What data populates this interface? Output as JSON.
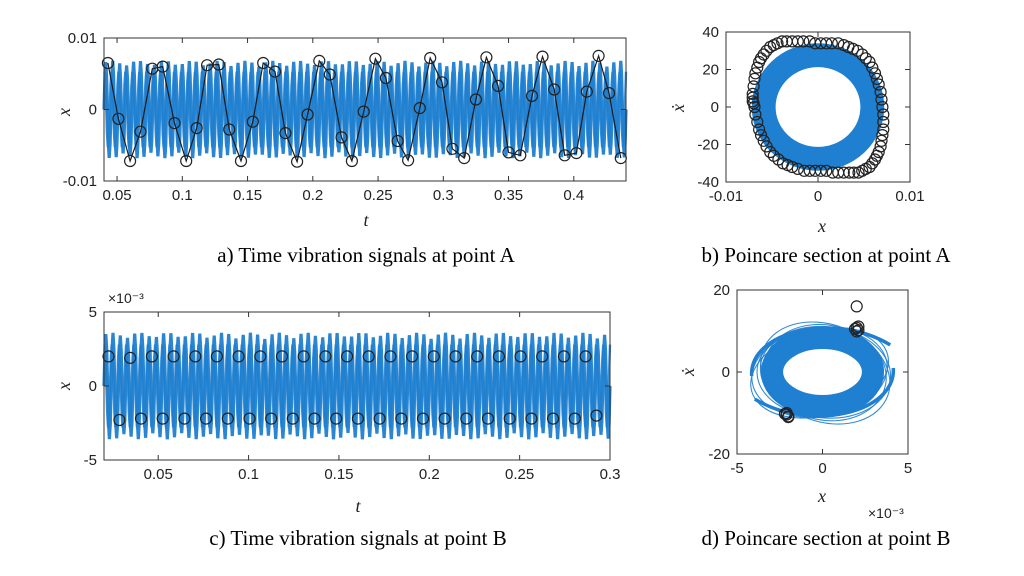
{
  "chart_data": [
    {
      "panel": "a",
      "type": "line",
      "caption": "a) Time vibration signals at point A",
      "xlabel": "t",
      "ylabel": "x",
      "xlim": [
        0.04,
        0.44
      ],
      "ylim": [
        -0.01,
        0.01
      ],
      "xticks": [
        "0.05",
        "0.1",
        "0.15",
        "0.2",
        "0.25",
        "0.3",
        "0.35",
        "0.4"
      ],
      "xtick_values": [
        0.05,
        0.1,
        0.15,
        0.2,
        0.25,
        0.3,
        0.35,
        0.4
      ],
      "yticks": [
        "0.01",
        "0",
        "-0.01"
      ],
      "ytick_values": [
        0.01,
        0,
        -0.01
      ],
      "signal": {
        "color": "#1f7fd0",
        "amplitude": 0.0068,
        "cycles": 75
      },
      "poincare_points": {
        "x": [
          0.043,
          0.051,
          0.06,
          0.068,
          0.077,
          0.085,
          0.094,
          0.103,
          0.111,
          0.119,
          0.128,
          0.136,
          0.145,
          0.154,
          0.162,
          0.171,
          0.179,
          0.188,
          0.196,
          0.205,
          0.213,
          0.222,
          0.23,
          0.239,
          0.248,
          0.256,
          0.265,
          0.273,
          0.282,
          0.29,
          0.299,
          0.307,
          0.316,
          0.325,
          0.333,
          0.342,
          0.35,
          0.359,
          0.368,
          0.376,
          0.385,
          0.393,
          0.402,
          0.41,
          0.419,
          0.427,
          0.436
        ],
        "y": [
          0.0065,
          -0.0013,
          -0.0072,
          -0.0031,
          0.0057,
          0.006,
          -0.0019,
          -0.0072,
          -0.0026,
          0.0062,
          0.0063,
          -0.0028,
          -0.0072,
          -0.0017,
          0.0065,
          0.0053,
          -0.0033,
          -0.0073,
          -0.0007,
          0.0068,
          0.0049,
          -0.0039,
          -0.0072,
          -0.0003,
          0.0071,
          0.0044,
          -0.0044,
          -0.0071,
          0.0002,
          0.0072,
          0.0038,
          -0.0055,
          -0.0068,
          0.0014,
          0.0073,
          0.0033,
          -0.006,
          -0.0064,
          0.0019,
          0.0074,
          0.0028,
          -0.0064,
          -0.0061,
          0.0025,
          0.0075,
          0.0023,
          -0.0068
        ]
      }
    },
    {
      "panel": "b",
      "type": "scatter",
      "caption": "b) Poincare section at point A",
      "xlabel": "x",
      "ylabel": "ẋ",
      "xlim": [
        -0.01,
        0.01
      ],
      "ylim": [
        -40,
        40
      ],
      "xticks": [
        "-0.01",
        "0",
        "0.01"
      ],
      "xtick_values": [
        -0.01,
        0,
        0.01
      ],
      "yticks": [
        "40",
        "20",
        "0",
        "-20",
        "-40"
      ],
      "ytick_values": [
        40,
        20,
        0,
        -20,
        -40
      ],
      "orbit": {
        "color": "#1f7fd0",
        "rx": 0.0072,
        "ry": 34
      },
      "poincare_points": {
        "x": [
          -0.0071,
          -0.0071,
          -0.007,
          -0.0069,
          -0.0068,
          -0.0066,
          -0.0064,
          -0.0062,
          -0.0059,
          -0.0056,
          -0.0052,
          -0.0048,
          -0.0044,
          -0.0039,
          -0.0034,
          -0.0028,
          -0.0022,
          -0.0016,
          -0.0009,
          -0.0003,
          0.0003,
          0.0009,
          0.0015,
          0.0022,
          0.0028,
          0.0033,
          0.0038,
          0.0043,
          0.0048,
          0.0052,
          0.0056,
          0.0059,
          0.0062,
          0.0064,
          0.0066,
          0.0068,
          0.0069,
          0.007,
          0.0071,
          0.0071,
          0.0071,
          0.007,
          0.0069,
          0.0068,
          0.0066,
          0.0064,
          0.0062,
          0.0059,
          0.0056,
          0.0052,
          0.0048,
          0.0044,
          0.0039,
          0.0034,
          0.0028,
          0.0022,
          0.0016,
          0.0009,
          0.0003,
          -0.0003,
          -0.0009,
          -0.0015,
          -0.0022,
          -0.0028,
          -0.0033,
          -0.0038,
          -0.0043,
          -0.0048,
          -0.0052,
          -0.0056,
          -0.0059,
          -0.0062,
          -0.0064,
          -0.0066,
          -0.0068,
          -0.0069,
          -0.007,
          -0.0071
        ],
        "y": [
          3,
          7,
          11,
          15,
          18,
          21,
          24,
          26,
          28,
          30,
          32,
          33,
          34,
          35,
          35,
          35,
          35,
          35,
          35,
          34,
          34,
          34,
          34,
          34,
          33,
          32,
          31,
          30,
          28,
          26,
          24,
          21,
          18,
          15,
          12,
          8,
          4,
          0,
          -4,
          -8,
          -12,
          -15,
          -18,
          -21,
          -24,
          -26,
          -28,
          -30,
          -32,
          -33,
          -34,
          -35,
          -35,
          -35,
          -35,
          -35,
          -35,
          -34,
          -34,
          -34,
          -34,
          -34,
          -33,
          -32,
          -31,
          -30,
          -28,
          -26,
          -24,
          -21,
          -18,
          -15,
          -12,
          -8,
          -4,
          0,
          2,
          5
        ]
      }
    },
    {
      "panel": "c",
      "type": "line",
      "caption": "c) Time vibration signals at point B",
      "xlabel": "t",
      "ylabel": "x",
      "y_exponent": "×10⁻³",
      "xlim": [
        0.02,
        0.3
      ],
      "ylim": [
        -5,
        5
      ],
      "xticks": [
        "0.05",
        "0.1",
        "0.15",
        "0.2",
        "0.25",
        "0.3"
      ],
      "xtick_values": [
        0.05,
        0.1,
        0.15,
        0.2,
        0.25,
        0.3
      ],
      "yticks": [
        "5",
        "0",
        "-5"
      ],
      "ytick_values": [
        5,
        0,
        -5
      ],
      "signal": {
        "color": "#1f7fd0",
        "amplitude": 3.6,
        "cycles": 70
      },
      "poincare_points": {
        "x": [
          0.0225,
          0.0285,
          0.0345,
          0.0405,
          0.0465,
          0.0525,
          0.0585,
          0.0645,
          0.0705,
          0.0765,
          0.0825,
          0.0885,
          0.0945,
          0.1005,
          0.1065,
          0.1125,
          0.1185,
          0.1245,
          0.1305,
          0.1365,
          0.1425,
          0.1485,
          0.1545,
          0.1605,
          0.1665,
          0.1725,
          0.1785,
          0.1845,
          0.1905,
          0.1965,
          0.2025,
          0.2085,
          0.2145,
          0.2205,
          0.2265,
          0.2325,
          0.2385,
          0.2445,
          0.2505,
          0.2565,
          0.2625,
          0.2685,
          0.2745,
          0.2805,
          0.2865,
          0.2925
        ],
        "y": [
          2.0,
          -2.3,
          1.9,
          -2.2,
          2.0,
          -2.2,
          2.0,
          -2.2,
          2.0,
          -2.2,
          2.0,
          -2.2,
          2.0,
          -2.2,
          2.0,
          -2.2,
          2.0,
          -2.2,
          2.0,
          -2.2,
          2.0,
          -2.2,
          2.0,
          -2.2,
          2.0,
          -2.2,
          2.0,
          -2.2,
          2.0,
          -2.2,
          2.0,
          -2.2,
          2.0,
          -2.2,
          2.0,
          -2.2,
          2.0,
          -2.2,
          2.0,
          -2.2,
          2.0,
          -2.2,
          2.0,
          -2.2,
          2.0,
          -2.0
        ]
      }
    },
    {
      "panel": "d",
      "type": "scatter",
      "caption": "d) Poincare section at point B",
      "xlabel": "x",
      "ylabel": "ẋ",
      "x_exponent": "×10⁻³",
      "xlim": [
        -5,
        5
      ],
      "ylim": [
        -20,
        20
      ],
      "xticks": [
        "-5",
        "0",
        "5"
      ],
      "xtick_values": [
        -5,
        0,
        5
      ],
      "yticks": [
        "20",
        "0",
        "-20"
      ],
      "ytick_values": [
        20,
        0,
        -20
      ],
      "orbit": {
        "color": "#1f7fd0",
        "rx": 3.6,
        "ry": 11
      },
      "poincare_points": {
        "x": [
          2.0,
          2.0,
          2.1,
          1.9,
          2.1,
          2.0,
          -2.1,
          -2.1,
          -2.0,
          -2.2,
          -2.0
        ],
        "y": [
          16,
          10.8,
          11.1,
          10.5,
          10.2,
          9.9,
          -10.0,
          -10.4,
          -10.8,
          -10.2,
          -11.0
        ]
      }
    }
  ]
}
